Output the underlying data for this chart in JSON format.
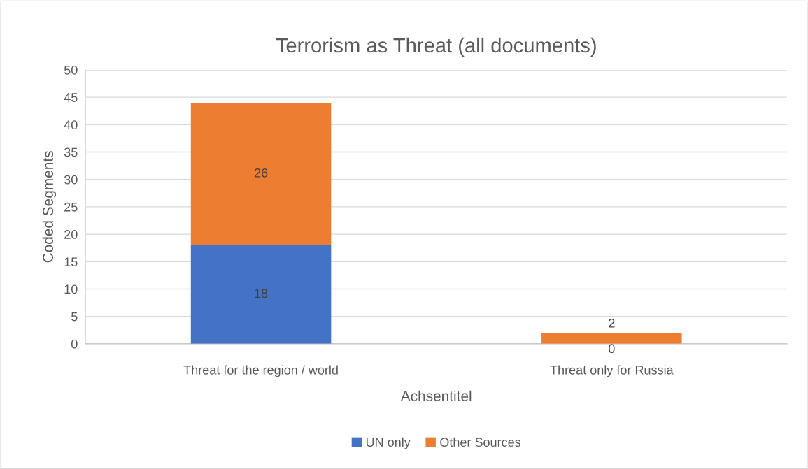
{
  "chart_data": {
    "type": "bar",
    "title": "Terrorism as Threat (all documents)",
    "xlabel": "Achsentitel",
    "ylabel": "Coded Segments",
    "categories": [
      "Threat for the region / world",
      "Threat only for Russia"
    ],
    "series": [
      {
        "name": "UN only",
        "color": "#4472c4",
        "values": [
          18,
          0
        ]
      },
      {
        "name": "Other Sources",
        "color": "#ed7d31",
        "values": [
          26,
          2
        ]
      }
    ],
    "stacked": true,
    "data_labels": true,
    "ylim": [
      0,
      50
    ],
    "yticks": [
      0,
      5,
      10,
      15,
      20,
      25,
      30,
      35,
      40,
      45,
      50
    ],
    "grid": "y",
    "legend": "bottom"
  }
}
